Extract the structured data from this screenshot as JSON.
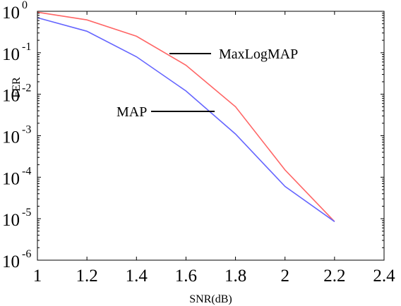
{
  "chart_data": {
    "type": "line",
    "xlabel": "SNR(dB)",
    "ylabel": "FER",
    "xlim": [
      1,
      2.4
    ],
    "ylim": [
      1e-06,
      1
    ],
    "yscale": "log",
    "grid": false,
    "x_ticks": [
      "1",
      "1.2",
      "1.4",
      "1.6",
      "1.8",
      "2",
      "2.2",
      "2.4"
    ],
    "y_ticks": [
      {
        "base": "10",
        "exp": "0"
      },
      {
        "base": "10",
        "exp": "-1"
      },
      {
        "base": "10",
        "exp": "-2"
      },
      {
        "base": "10",
        "exp": "-3"
      },
      {
        "base": "10",
        "exp": "-4"
      },
      {
        "base": "10",
        "exp": "-5"
      },
      {
        "base": "10",
        "exp": "-6"
      }
    ],
    "series": [
      {
        "name": "MaxLogMAP",
        "color": "#ff6666",
        "x": [
          1.0,
          1.2,
          1.4,
          1.6,
          1.8,
          2.0,
          2.2
        ],
        "y": [
          0.95,
          0.62,
          0.25,
          0.05,
          0.005,
          0.00015,
          8.5e-06
        ]
      },
      {
        "name": "MAP",
        "color": "#6666ff",
        "x": [
          1.0,
          1.2,
          1.4,
          1.6,
          1.8,
          2.0,
          2.2
        ],
        "y": [
          0.7,
          0.33,
          0.08,
          0.012,
          0.0011,
          6e-05,
          8.5e-06
        ]
      }
    ],
    "annotations": [
      {
        "text": "MaxLogMAP",
        "series": "MaxLogMAP"
      },
      {
        "text": "MAP",
        "series": "MAP"
      }
    ]
  }
}
